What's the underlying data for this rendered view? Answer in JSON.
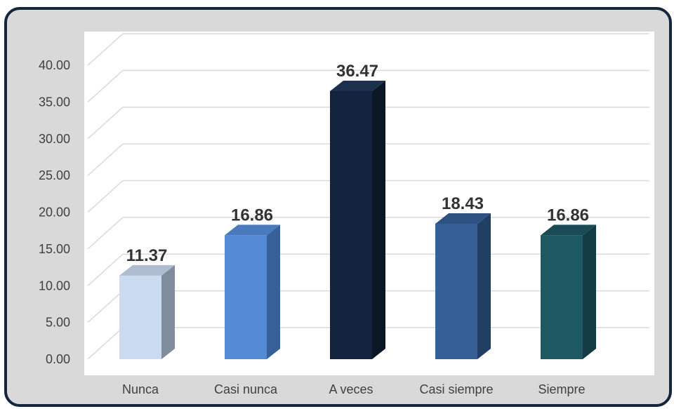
{
  "chart_data": {
    "type": "bar",
    "categories": [
      "Nunca",
      "Casi nunca",
      "A veces",
      "Casi siempre",
      "Siempre"
    ],
    "values": [
      11.37,
      16.86,
      36.47,
      18.43,
      16.86
    ],
    "data_labels": [
      "11.37",
      "16.86",
      "36.47",
      "18.43",
      "16.86"
    ],
    "y_ticks": [
      "0.00",
      "5.00",
      "10.00",
      "15.00",
      "20.00",
      "25.00",
      "30.00",
      "35.00",
      "40.00"
    ],
    "ylim": [
      0,
      40
    ],
    "title": "",
    "xlabel": "",
    "ylabel": "",
    "grid": true,
    "legend": "none",
    "style": "3d-column",
    "colors": {
      "bars": [
        "#c9daf1",
        "#558ad6",
        "#13233d",
        "#355f95",
        "#1e5863"
      ],
      "bar_sides": [
        "#7e8c9b",
        "#375f98",
        "#0b1627",
        "#213e63",
        "#123b43"
      ],
      "bar_tops": [
        "#aebccf",
        "#4a79bd",
        "#1c2f4d",
        "#2d5180",
        "#1a4b54"
      ],
      "frame_border": "#14253d",
      "frame_background": "#d9d9d9",
      "plot_background": "#ffffff",
      "grid": "#d9d9d9"
    }
  }
}
